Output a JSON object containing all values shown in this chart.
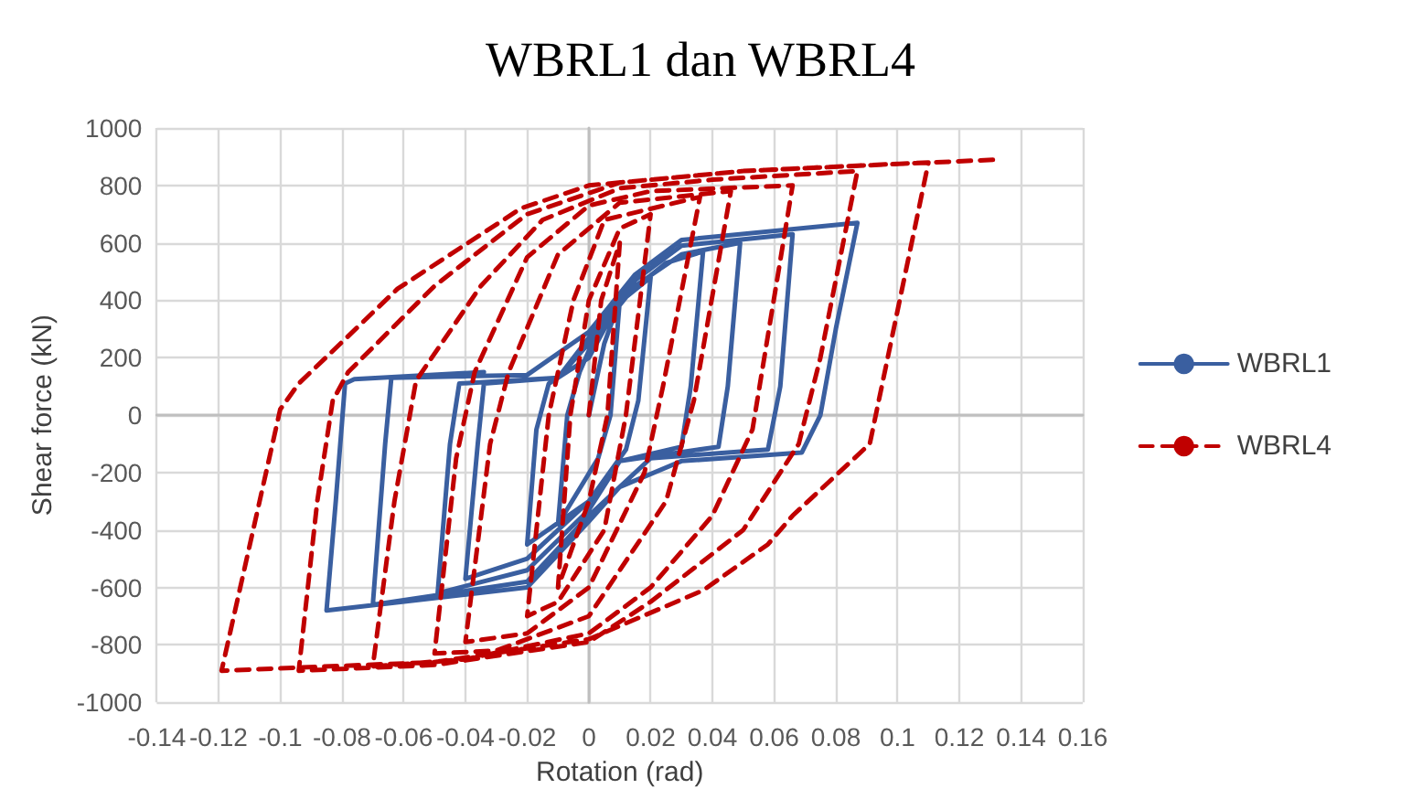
{
  "chart_data": {
    "type": "line",
    "title": "WBRL1 dan WBRL4",
    "xlabel": "Rotation (rad)",
    "ylabel": "Shear force (kN)",
    "xlim": [
      -0.14,
      0.16
    ],
    "xticks": [
      -0.14,
      -0.12,
      -0.1,
      -0.08,
      -0.06,
      -0.04,
      -0.02,
      0,
      0.02,
      0.04,
      0.06,
      0.08,
      0.1,
      0.12,
      0.14,
      0.16
    ],
    "ylim": [
      -1000,
      1000
    ],
    "yticks": [
      -1000,
      -800,
      -600,
      -400,
      -200,
      0,
      200,
      400,
      600,
      800,
      1000
    ],
    "grid": true,
    "legend": "right",
    "marker": "none",
    "series": [
      {
        "name": "WBRL1",
        "color": "#3a5fa0",
        "line_style": "solid",
        "x": [
          0,
          0.005,
          0.01,
          0.007,
          0.003,
          -0.01,
          -0.007,
          -0.003,
          0.005,
          0.02,
          0.016,
          0.012,
          0,
          -0.02,
          -0.017,
          -0.013,
          0,
          0.01,
          0.025,
          0.037,
          0.033,
          0.03,
          0.01,
          0,
          -0.02,
          -0.04,
          -0.036,
          -0.034,
          -0.01,
          0,
          0.015,
          0.03,
          0.049,
          0.045,
          0.042,
          0.01,
          0,
          -0.02,
          -0.049,
          -0.045,
          -0.042,
          -0.01,
          0,
          0.015,
          0.03,
          0.066,
          0.062,
          0.058,
          0.02,
          0,
          -0.02,
          -0.07,
          -0.066,
          -0.064,
          -0.02,
          0,
          0.015,
          0.03,
          0.087,
          0.08,
          0.075,
          0.069,
          0.03,
          0.01,
          0,
          -0.02,
          -0.085,
          -0.082,
          -0.079,
          -0.076,
          -0.034
        ],
        "values": [
          0,
          250,
          400,
          0,
          -150,
          -380,
          0,
          150,
          350,
          480,
          50,
          -120,
          -300,
          -450,
          -50,
          110,
          200,
          400,
          530,
          570,
          100,
          -110,
          -160,
          -300,
          -500,
          -570,
          -100,
          110,
          130,
          250,
          450,
          560,
          600,
          100,
          -110,
          -160,
          -330,
          -540,
          -620,
          -100,
          110,
          130,
          270,
          470,
          590,
          630,
          100,
          -120,
          -150,
          -350,
          -580,
          -660,
          -100,
          130,
          140,
          290,
          490,
          610,
          670,
          300,
          0,
          -130,
          -160,
          -250,
          -370,
          -600,
          -680,
          -300,
          110,
          125,
          150
        ]
      },
      {
        "name": "WBRL4",
        "color": "#c00000",
        "line_style": "dashed",
        "x": [
          0,
          0.004,
          0.01,
          0.006,
          0,
          -0.01,
          -0.006,
          0,
          0.01,
          0.02,
          0.012,
          0.005,
          -0.01,
          -0.02,
          -0.013,
          -0.005,
          0.005,
          0.036,
          0.024,
          0.018,
          0,
          -0.02,
          -0.04,
          -0.032,
          -0.026,
          -0.01,
          0.01,
          0.046,
          0.034,
          0.025,
          0,
          -0.03,
          -0.05,
          -0.043,
          -0.037,
          -0.02,
          0,
          0.02,
          0.066,
          0.053,
          0.04,
          0.02,
          0,
          -0.04,
          -0.07,
          -0.063,
          -0.056,
          -0.035,
          -0.015,
          0.01,
          0.04,
          0.087,
          0.075,
          0.068,
          0.05,
          0.02,
          0,
          -0.05,
          -0.094,
          -0.088,
          -0.083,
          -0.078,
          -0.05,
          -0.02,
          0.01,
          0.05,
          0.11,
          0.091,
          0.066,
          0.058,
          0.037,
          0,
          -0.05,
          -0.119,
          -0.1,
          -0.094,
          -0.062,
          -0.022,
          0,
          0.05,
          0.1,
          0.133
        ],
        "values": [
          0,
          400,
          600,
          0,
          -300,
          -600,
          0,
          400,
          650,
          700,
          0,
          -400,
          -650,
          -700,
          0,
          400,
          680,
          760,
          100,
          -200,
          -600,
          -760,
          -790,
          -100,
          150,
          560,
          740,
          780,
          50,
          -300,
          -700,
          -820,
          -830,
          -150,
          150,
          550,
          730,
          780,
          800,
          -50,
          -350,
          -600,
          -760,
          -850,
          -875,
          -300,
          120,
          450,
          680,
          790,
          820,
          850,
          200,
          -100,
          -400,
          -650,
          -790,
          -870,
          -890,
          -300,
          50,
          150,
          450,
          700,
          810,
          850,
          880,
          -100,
          -350,
          -450,
          -610,
          -780,
          -860,
          -890,
          20,
          110,
          440,
          720,
          800,
          850,
          875,
          890
        ]
      }
    ]
  }
}
